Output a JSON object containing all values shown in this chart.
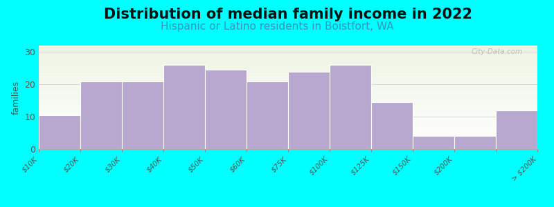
{
  "title": "Distribution of median family income in 2022",
  "subtitle": "Hispanic or Latino residents in Boistfort, WA",
  "ylabel": "families",
  "background_color": "#00FFFF",
  "bar_color": "#b8a8d0",
  "bar_edge_color": "#ffffff",
  "bar_values": [
    10.5,
    21,
    21,
    26,
    24.5,
    21,
    24,
    26,
    14.5,
    4,
    4,
    12
  ],
  "tick_labels": [
    "$10K",
    "$20K",
    "$30K",
    "$40K",
    "$50K",
    "$60K",
    "$75K",
    "$100K",
    "$125K",
    "$150K",
    "$200K",
    "",
    "> $200K"
  ],
  "ylim": [
    0,
    32
  ],
  "yticks": [
    0,
    10,
    20,
    30
  ],
  "title_fontsize": 15,
  "subtitle_fontsize": 11,
  "ylabel_fontsize": 9,
  "watermark": "City-Data.com"
}
